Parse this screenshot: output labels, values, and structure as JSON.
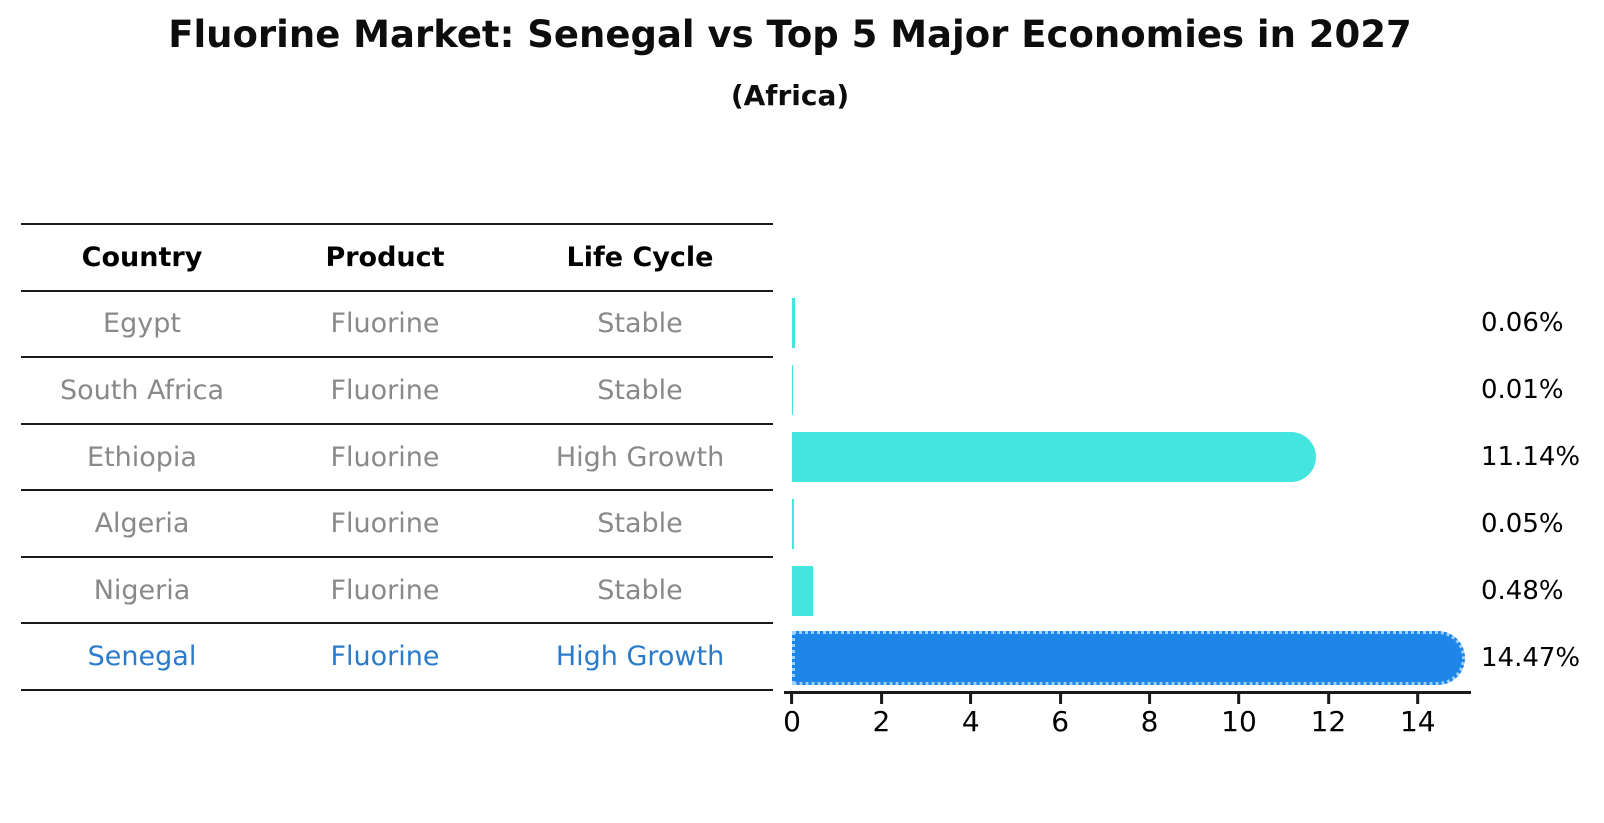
{
  "title": "Fluorine Market: Senegal vs Top 5 Major Economies in 2027",
  "subtitle": "(Africa)",
  "table": {
    "headers": [
      "Country",
      "Product",
      "Life Cycle"
    ],
    "rows": [
      {
        "country": "Egypt",
        "product": "Fluorine",
        "life_cycle": "Stable",
        "highlight": false
      },
      {
        "country": "South Africa",
        "product": "Fluorine",
        "life_cycle": "Stable",
        "highlight": false
      },
      {
        "country": "Ethiopia",
        "product": "Fluorine",
        "life_cycle": "High Growth",
        "highlight": false
      },
      {
        "country": "Algeria",
        "product": "Fluorine",
        "life_cycle": "Stable",
        "highlight": false
      },
      {
        "country": "Nigeria",
        "product": "Fluorine",
        "life_cycle": "Stable",
        "highlight": false
      },
      {
        "country": "Senegal",
        "product": "Fluorine",
        "life_cycle": "High Growth",
        "highlight": true
      }
    ]
  },
  "chart_data": {
    "type": "bar",
    "orientation": "horizontal",
    "title": "Fluorine Market: Senegal vs Top 5 Major Economies in 2027",
    "subtitle": "(Africa)",
    "categories": [
      "Egypt",
      "South Africa",
      "Ethiopia",
      "Algeria",
      "Nigeria",
      "Senegal"
    ],
    "values": [
      0.06,
      0.01,
      11.14,
      0.05,
      0.48,
      14.47
    ],
    "value_labels": [
      "0.06%",
      "0.01%",
      "11.14%",
      "0.05%",
      "0.48%",
      "14.47%"
    ],
    "x_ticks": [
      0,
      2,
      4,
      6,
      8,
      10,
      12,
      14
    ],
    "xlim": [
      0,
      15.19
    ],
    "grid": false,
    "legend": false,
    "highlight_index": 5,
    "rounded_bar_indices": [
      2,
      5
    ]
  },
  "colors": {
    "bar_default": "#45E5DF",
    "bar_highlight": "#1E86E8",
    "highlight_text": "#2B7BCB",
    "table_text": "#898989",
    "header_text": "#000000",
    "axis": "#1a1a1a",
    "background": "#ffffff"
  }
}
